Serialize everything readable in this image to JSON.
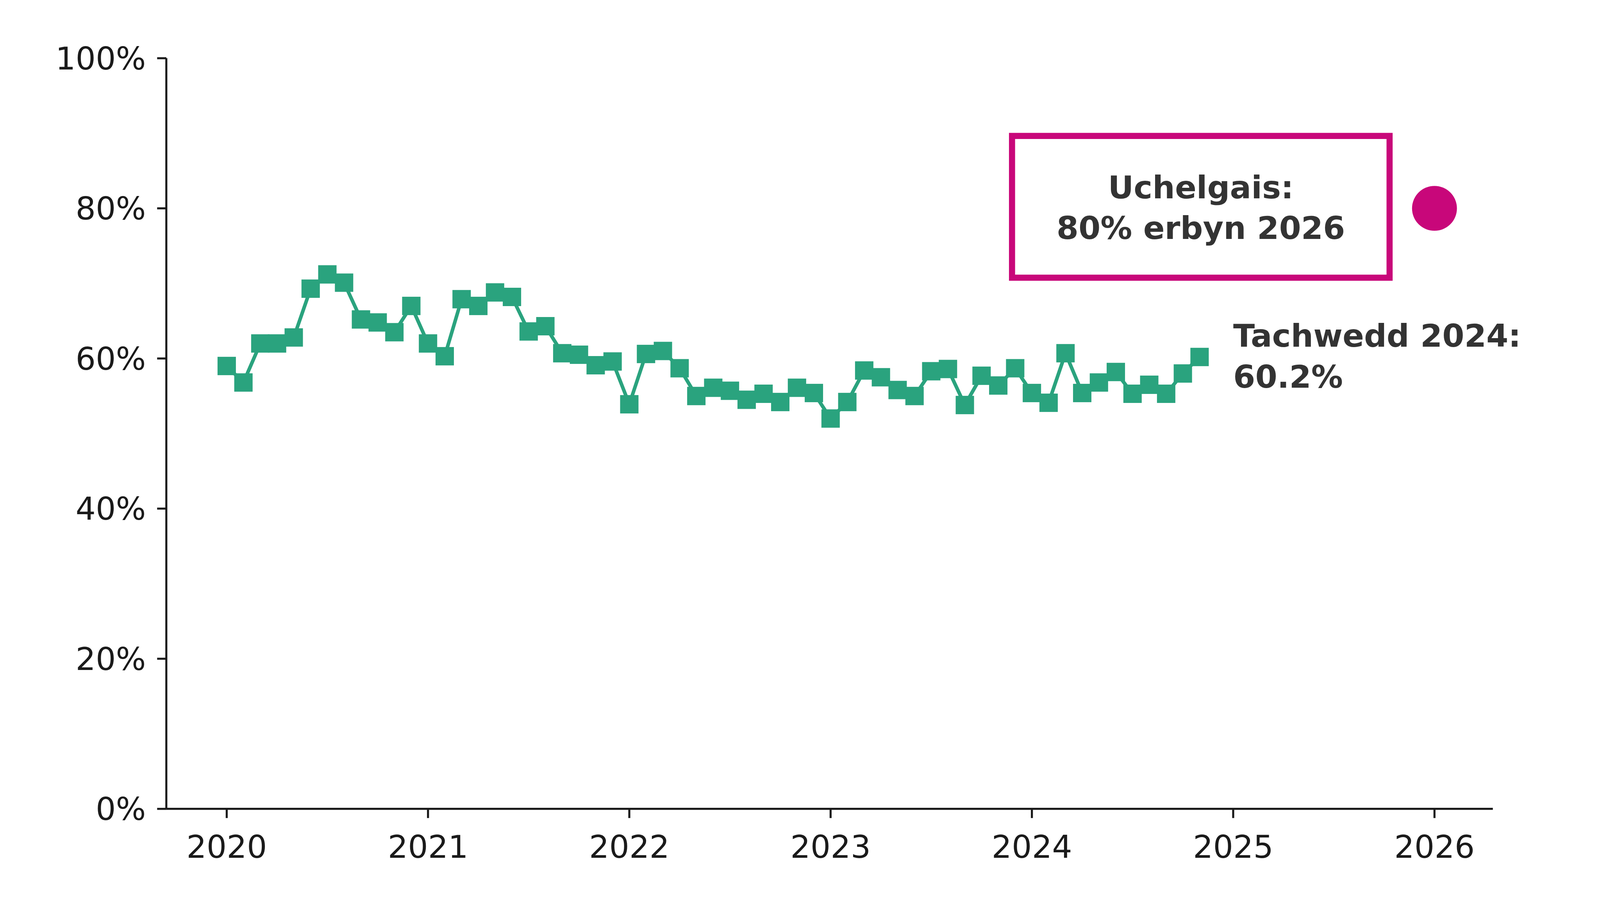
{
  "chart_data": {
    "type": "line",
    "x": [
      2020,
      2020.083,
      2020.167,
      2020.25,
      2020.333,
      2020.417,
      2020.5,
      2020.583,
      2020.667,
      2020.75,
      2020.833,
      2020.917,
      2021,
      2021.083,
      2021.167,
      2021.25,
      2021.333,
      2021.417,
      2021.5,
      2021.583,
      2021.667,
      2021.75,
      2021.833,
      2021.917,
      2022,
      2022.083,
      2022.167,
      2022.25,
      2022.333,
      2022.417,
      2022.5,
      2022.583,
      2022.667,
      2022.75,
      2022.833,
      2022.917,
      2023,
      2023.083,
      2023.167,
      2023.25,
      2023.333,
      2023.417,
      2023.5,
      2023.583,
      2023.667,
      2023.75,
      2023.833,
      2023.917,
      2024,
      2024.083,
      2024.167,
      2024.25,
      2024.333,
      2024.417,
      2024.5,
      2024.583,
      2024.667,
      2024.75,
      2024.833
    ],
    "series": [
      {
        "color": "#2aa37e",
        "marker": "square",
        "line_style": "solid",
        "values": [
          59.0,
          56.8,
          62.0,
          62.0,
          62.8,
          69.3,
          71.2,
          70.1,
          65.2,
          64.8,
          63.5,
          67.0,
          62.0,
          60.3,
          67.9,
          67.0,
          68.8,
          68.2,
          63.6,
          64.3,
          60.7,
          60.5,
          59.1,
          59.6,
          53.9,
          60.6,
          61.0,
          58.7,
          55.0,
          56.1,
          55.7,
          54.5,
          55.3,
          54.2,
          56.1,
          55.4,
          52.0,
          54.2,
          58.4,
          57.5,
          55.8,
          55.0,
          58.3,
          58.6,
          53.8,
          57.7,
          56.4,
          58.7,
          55.4,
          54.1,
          60.7,
          55.4,
          56.8,
          58.2,
          55.3,
          56.5,
          55.3,
          58.0,
          60.2
        ]
      }
    ],
    "xlim": [
      2019.7,
      2026.29
    ],
    "xticks": [
      2020,
      2021,
      2022,
      2023,
      2024,
      2025,
      2026
    ],
    "ylim": [
      0,
      100
    ],
    "yticks": [
      {
        "value": 0,
        "label": "0%"
      },
      {
        "value": 20,
        "label": "20%"
      },
      {
        "value": 40,
        "label": "40%"
      },
      {
        "value": 60,
        "label": "60%"
      },
      {
        "value": 80,
        "label": "80%"
      },
      {
        "value": 100,
        "label": "100%"
      }
    ],
    "grid": false,
    "annotations": [
      {
        "lines": [
          "Uchelgais:",
          "80% erbyn 2026"
        ],
        "x": 2026,
        "y": 80,
        "color": "#c8077a",
        "marker": "circle"
      },
      {
        "lines": [
          "Tachwedd 2024:",
          "60.2%"
        ],
        "x": 2024.833,
        "y": 60.2
      }
    ]
  }
}
